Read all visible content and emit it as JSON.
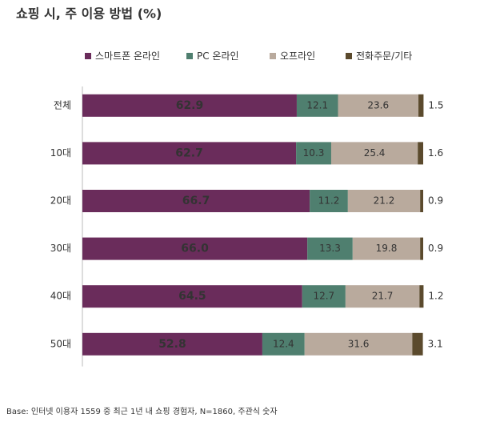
{
  "chart_data": {
    "type": "stacked-bar-horizontal",
    "title": "쇼핑 시, 주 이용 방법 (%)",
    "footnote": "Base: 인터넷 이용자 1559 중 최근 1년 내 쇼핑 경험자, N=1860, 주관식 숫자",
    "categories": [
      "전체",
      "10대",
      "20대",
      "30대",
      "40대",
      "50대"
    ],
    "xlim": [
      0,
      100
    ],
    "series": [
      {
        "name": "스마트폰 온라인",
        "color": "#6a2c5b",
        "values": [
          62.9,
          62.7,
          66.7,
          66.0,
          64.5,
          52.8
        ],
        "value_labels": [
          "62.9",
          "62.7",
          "66.7",
          "66.0",
          "64.5",
          "52.8"
        ]
      },
      {
        "name": "PC 온라인",
        "color": "#4f7f6f",
        "values": [
          12.1,
          10.3,
          11.2,
          13.3,
          12.7,
          12.4
        ],
        "value_labels": [
          "12.1",
          "10.3",
          "11.2",
          "13.3",
          "12.7",
          "12.4"
        ]
      },
      {
        "name": "오프라인",
        "color": "#b9aa9d",
        "values": [
          23.6,
          25.4,
          21.2,
          19.8,
          21.7,
          31.6
        ],
        "value_labels": [
          "23.6",
          "25.4",
          "21.2",
          "19.8",
          "21.7",
          "31.6"
        ]
      },
      {
        "name": "전화주문/기타",
        "color": "#5b4a2d",
        "values": [
          1.5,
          1.6,
          0.9,
          0.9,
          1.2,
          3.1
        ],
        "value_labels": [
          "1.5",
          "1.6",
          "0.9",
          "0.9",
          "1.2",
          "3.1"
        ]
      }
    ]
  }
}
